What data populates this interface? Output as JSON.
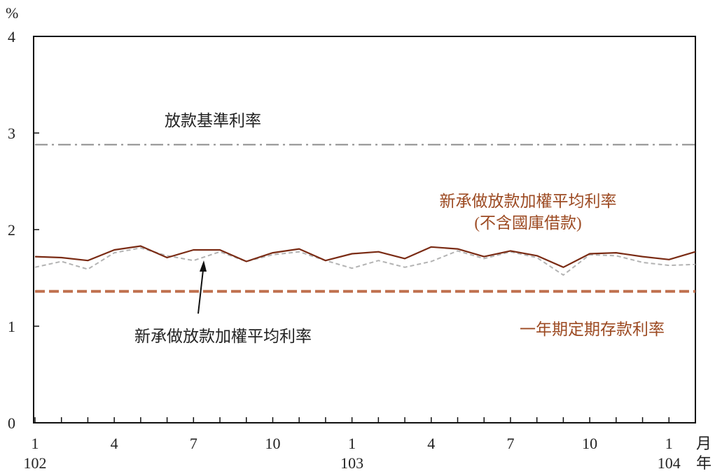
{
  "chart_data": {
    "type": "line",
    "yunit": "%",
    "ylim": [
      0,
      4
    ],
    "yticks": [
      0,
      1,
      2,
      3,
      4
    ],
    "x_count": 26,
    "xtick_labels": [
      {
        "index": 0,
        "month": "1",
        "year": "102"
      },
      {
        "index": 3,
        "month": "4",
        "year": ""
      },
      {
        "index": 6,
        "month": "7",
        "year": ""
      },
      {
        "index": 9,
        "month": "10",
        "year": ""
      },
      {
        "index": 12,
        "month": "1",
        "year": "103"
      },
      {
        "index": 15,
        "month": "4",
        "year": ""
      },
      {
        "index": 18,
        "month": "7",
        "year": ""
      },
      {
        "index": 21,
        "month": "10",
        "year": ""
      },
      {
        "index": 24,
        "month": "1",
        "year": "104"
      }
    ],
    "x_unit_month": "月",
    "x_unit_year": "年",
    "grid": false,
    "series": [
      {
        "name": "放款基準利率",
        "color": "#8c8c8c",
        "style": "dashdot",
        "values": [
          2.88,
          2.88,
          2.88,
          2.88,
          2.88,
          2.88,
          2.88,
          2.88,
          2.88,
          2.88,
          2.88,
          2.88,
          2.88,
          2.88,
          2.88,
          2.88,
          2.88,
          2.88,
          2.88,
          2.88,
          2.88,
          2.88,
          2.88,
          2.88,
          2.88,
          2.88
        ]
      },
      {
        "name": "新承做放款加權平均利率(不含國庫借款)",
        "color": "#7a2b14",
        "style": "solid",
        "values": [
          1.72,
          1.71,
          1.68,
          1.79,
          1.83,
          1.71,
          1.79,
          1.79,
          1.67,
          1.76,
          1.8,
          1.68,
          1.75,
          1.77,
          1.7,
          1.82,
          1.8,
          1.72,
          1.78,
          1.73,
          1.61,
          1.75,
          1.76,
          1.72,
          1.69,
          1.77
        ]
      },
      {
        "name": "新承做放款加權平均利率",
        "color": "#b3b3b3",
        "style": "dashed",
        "values": [
          1.61,
          1.67,
          1.59,
          1.76,
          1.81,
          1.73,
          1.68,
          1.77,
          1.67,
          1.74,
          1.77,
          1.68,
          1.6,
          1.68,
          1.61,
          1.67,
          1.78,
          1.7,
          1.77,
          1.71,
          1.53,
          1.74,
          1.73,
          1.66,
          1.63,
          1.64
        ]
      },
      {
        "name": "一年期定期存款利率",
        "color": "#c0714f",
        "style": "thickdash",
        "values": [
          1.36,
          1.36,
          1.36,
          1.36,
          1.36,
          1.36,
          1.36,
          1.36,
          1.36,
          1.36,
          1.36,
          1.36,
          1.36,
          1.36,
          1.36,
          1.36,
          1.36,
          1.36,
          1.36,
          1.36,
          1.36,
          1.36,
          1.36,
          1.36,
          1.36,
          1.36
        ]
      }
    ],
    "labels": {
      "base_rate": "放款基準利率",
      "new_loan_excl_line1": "新承做放款加權平均利率",
      "new_loan_excl_line2": "(不含國庫借款)",
      "new_loan": "新承做放款加權平均利率",
      "deposit": "一年期定期存款利率"
    },
    "label_colors": {
      "base_rate": "#222222",
      "new_loan_excl": "#9c4a22",
      "new_loan": "#222222",
      "deposit": "#9c4a22"
    }
  }
}
